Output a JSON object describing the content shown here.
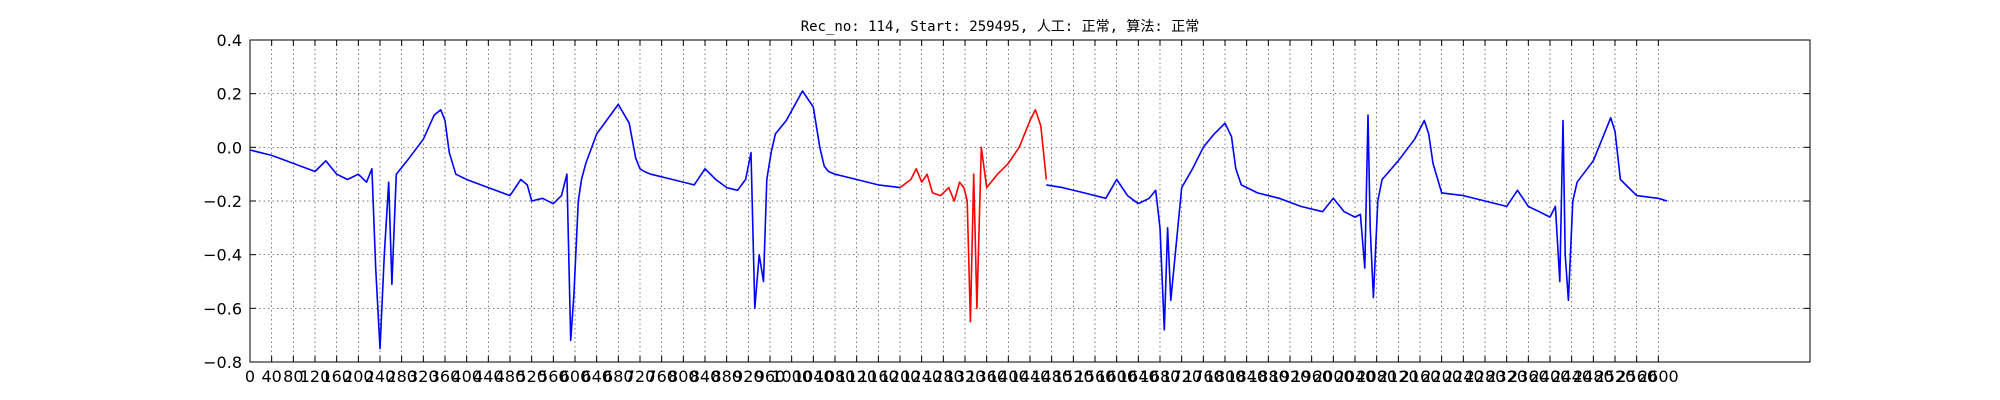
{
  "colors": {
    "normal": "#0000ff",
    "highlight": "#ff0000"
  },
  "chart_data": {
    "type": "line",
    "title": "Rec_no: 114, Start: 259495, 人工: 正常, 算法: 正常",
    "xlabel": "",
    "ylabel": "",
    "xlim": [
      0,
      2880
    ],
    "ylim": [
      -0.8,
      0.4
    ],
    "grid": true,
    "y_ticks": [
      0.4,
      0.2,
      0.0,
      -0.2,
      -0.4,
      -0.6,
      -0.8
    ],
    "y_tick_labels": [
      "0.4",
      "0.2",
      "0.0",
      "−0.2",
      "−0.4",
      "−0.6",
      "−0.8"
    ],
    "x_ticks": [
      0,
      40,
      80,
      120,
      160,
      200,
      240,
      280,
      320,
      360,
      400,
      440,
      480,
      520,
      560,
      600,
      640,
      680,
      720,
      760,
      800,
      840,
      880,
      920,
      960,
      1000,
      1040,
      1080,
      1120,
      1160,
      1200,
      1240,
      1280,
      1320,
      1360,
      1400,
      1440,
      1480,
      1520,
      1560,
      1600,
      1640,
      1680,
      1720,
      1760,
      1800,
      1840,
      1880,
      1920,
      1960,
      2000,
      2040,
      2080,
      2120,
      2160,
      2200,
      2240,
      2280,
      2320,
      2360,
      2400,
      2440,
      2480,
      2520,
      2560,
      2600
    ],
    "series": [
      {
        "color_key": "normal",
        "x": [
          0,
          40,
          80,
          120,
          140,
          160,
          180,
          200,
          215,
          225,
          232,
          240,
          248,
          256,
          262,
          270,
          290,
          320,
          340,
          352,
          360,
          368,
          380,
          400,
          440,
          480,
          500,
          512,
          520,
          540,
          560,
          575,
          585,
          592,
          598,
          606,
          612,
          620,
          640,
          680,
          700,
          712,
          720,
          728,
          740,
          780,
          820,
          840,
          860,
          880,
          900,
          915,
          925,
          932,
          940,
          948,
          954,
          962,
          970,
          990,
          1020,
          1040,
          1052,
          1060,
          1068,
          1080,
          1120,
          1160,
          1200
        ],
        "y": [
          -0.01,
          -0.03,
          -0.06,
          -0.09,
          -0.05,
          -0.1,
          -0.12,
          -0.1,
          -0.13,
          -0.08,
          -0.45,
          -0.75,
          -0.4,
          -0.13,
          -0.51,
          -0.1,
          -0.05,
          0.03,
          0.12,
          0.14,
          0.1,
          -0.02,
          -0.1,
          -0.12,
          -0.15,
          -0.18,
          -0.12,
          -0.14,
          -0.2,
          -0.19,
          -0.21,
          -0.18,
          -0.1,
          -0.72,
          -0.55,
          -0.2,
          -0.12,
          -0.06,
          0.05,
          0.16,
          0.09,
          -0.04,
          -0.08,
          -0.09,
          -0.1,
          -0.12,
          -0.14,
          -0.08,
          -0.12,
          -0.15,
          -0.16,
          -0.12,
          -0.02,
          -0.6,
          -0.4,
          -0.5,
          -0.12,
          -0.02,
          0.05,
          0.1,
          0.21,
          0.15,
          0.0,
          -0.07,
          -0.09,
          -0.1,
          -0.12,
          -0.14,
          -0.15
        ]
      },
      {
        "color_key": "highlight",
        "x": [
          1200,
          1220,
          1230,
          1240,
          1250,
          1260,
          1275,
          1290,
          1300,
          1310,
          1318,
          1324,
          1330,
          1336,
          1342,
          1350,
          1360,
          1380,
          1400,
          1420,
          1430,
          1440,
          1450,
          1460,
          1470
        ],
        "y": [
          -0.15,
          -0.12,
          -0.08,
          -0.13,
          -0.1,
          -0.17,
          -0.18,
          -0.15,
          -0.2,
          -0.13,
          -0.15,
          -0.2,
          -0.65,
          -0.1,
          -0.6,
          0.0,
          -0.15,
          -0.1,
          -0.06,
          0.0,
          0.05,
          0.1,
          0.14,
          0.08,
          -0.12
        ]
      },
      {
        "color_key": "normal",
        "x": [
          1470,
          1500,
          1540,
          1580,
          1600,
          1620,
          1640,
          1660,
          1672,
          1680,
          1688,
          1694,
          1700,
          1720,
          1740,
          1760,
          1780,
          1800,
          1812,
          1820,
          1830,
          1860,
          1900,
          1940,
          1980,
          2000,
          2020,
          2040,
          2050,
          2058,
          2064,
          2068,
          2074,
          2082,
          2090,
          2120,
          2150,
          2168,
          2176,
          2184,
          2200,
          2240,
          2280,
          2320,
          2340,
          2360,
          2380,
          2400,
          2410,
          2418,
          2424,
          2428,
          2434,
          2442,
          2450,
          2480,
          2500,
          2512,
          2520,
          2530,
          2560,
          2600,
          2616
        ],
        "y": [
          -0.14,
          -0.15,
          -0.17,
          -0.19,
          -0.12,
          -0.18,
          -0.21,
          -0.19,
          -0.16,
          -0.3,
          -0.68,
          -0.3,
          -0.57,
          -0.15,
          -0.08,
          0.0,
          0.05,
          0.09,
          0.04,
          -0.08,
          -0.14,
          -0.17,
          -0.19,
          -0.22,
          -0.24,
          -0.19,
          -0.24,
          -0.26,
          -0.25,
          -0.45,
          0.12,
          -0.3,
          -0.56,
          -0.2,
          -0.12,
          -0.05,
          0.03,
          0.1,
          0.05,
          -0.06,
          -0.17,
          -0.18,
          -0.2,
          -0.22,
          -0.16,
          -0.22,
          -0.24,
          -0.26,
          -0.22,
          -0.5,
          0.1,
          -0.4,
          -0.57,
          -0.2,
          -0.13,
          -0.05,
          0.05,
          0.11,
          0.06,
          -0.12,
          -0.18,
          -0.19,
          -0.2
        ]
      }
    ]
  }
}
